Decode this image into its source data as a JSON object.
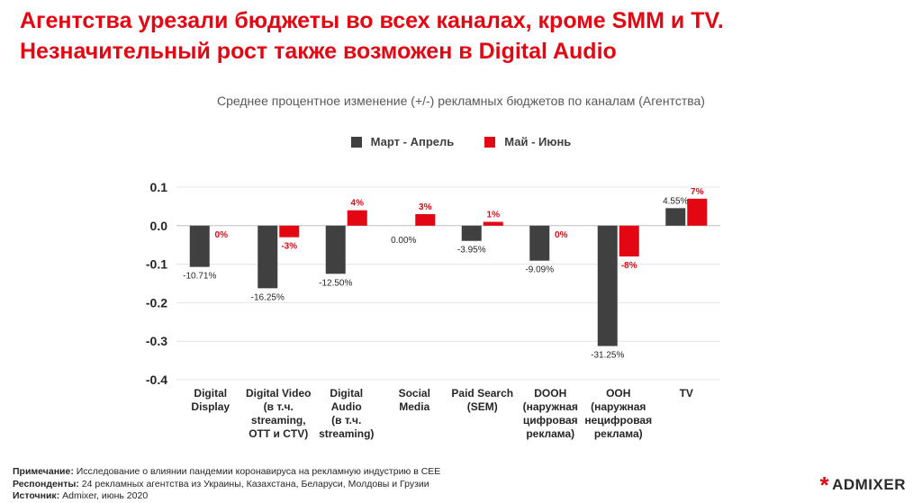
{
  "headline": {
    "line1": "Агентства урезали бюджеты во всех каналах, кроме SMM и TV.",
    "line2": "Незначительный рост также возможен в Digital Audio"
  },
  "footnote": {
    "note_label": "Примечание:",
    "note_text": " Исследование о влиянии пандемии коронавируса на рекламную индустрию в CEE",
    "resp_label": "Респонденты:",
    "resp_text": " 24 рекламных агентства из Украины, Казахстана, Беларуси, Молдовы и Грузии",
    "source_label": "Источник:",
    "source_text": " Admixer, июнь 2020"
  },
  "logo": {
    "star": "*",
    "text": "ADMIXER"
  },
  "colors": {
    "accent": "#e30613",
    "series1": "#404040",
    "series2": "#e30613"
  },
  "chart_data": {
    "type": "bar",
    "title": "Среднее процентное изменение (+/-) рекламных бюджетов по каналам  (Агентства)",
    "categories": [
      "Digital\nDisplay",
      "Digital Video\n(в т.ч.\nstreaming,\nOTT и CTV)",
      "Digital\nAudio\n(в т.ч.\nstreaming)",
      "Social\nMedia",
      "Paid Search\n(SEM)",
      "DOOH\n(наружная\nцифровая\nреклама)",
      "OOH\n(наружная\nнецифровая\nреклама)",
      "TV"
    ],
    "series": [
      {
        "name": "Март - Апрель",
        "values": [
          -0.1071,
          -0.1625,
          -0.125,
          0.0,
          -0.0395,
          -0.0909,
          -0.3125,
          0.0455
        ],
        "labels": [
          "-10.71%",
          "-16.25%",
          "-12.50%",
          "0.00%",
          "-3.95%",
          "-9.09%",
          "-31.25%",
          "4.55%"
        ]
      },
      {
        "name": "Май - Июнь",
        "values": [
          0.0,
          -0.03,
          0.04,
          0.03,
          0.01,
          0.0,
          -0.08,
          0.07
        ],
        "labels": [
          "0%",
          "-3%",
          "4%",
          "3%",
          "1%",
          "0%",
          "-8%",
          "7%"
        ]
      }
    ],
    "ylim": [
      -0.4,
      0.1
    ],
    "yticks": [
      0.1,
      0.0,
      -0.1,
      -0.2,
      -0.3,
      -0.4
    ],
    "ytick_labels": [
      "0.1",
      "0.0",
      "-0.1",
      "-0.2",
      "-0.3",
      "-0.4"
    ],
    "grid": true,
    "legend": "top-center"
  }
}
